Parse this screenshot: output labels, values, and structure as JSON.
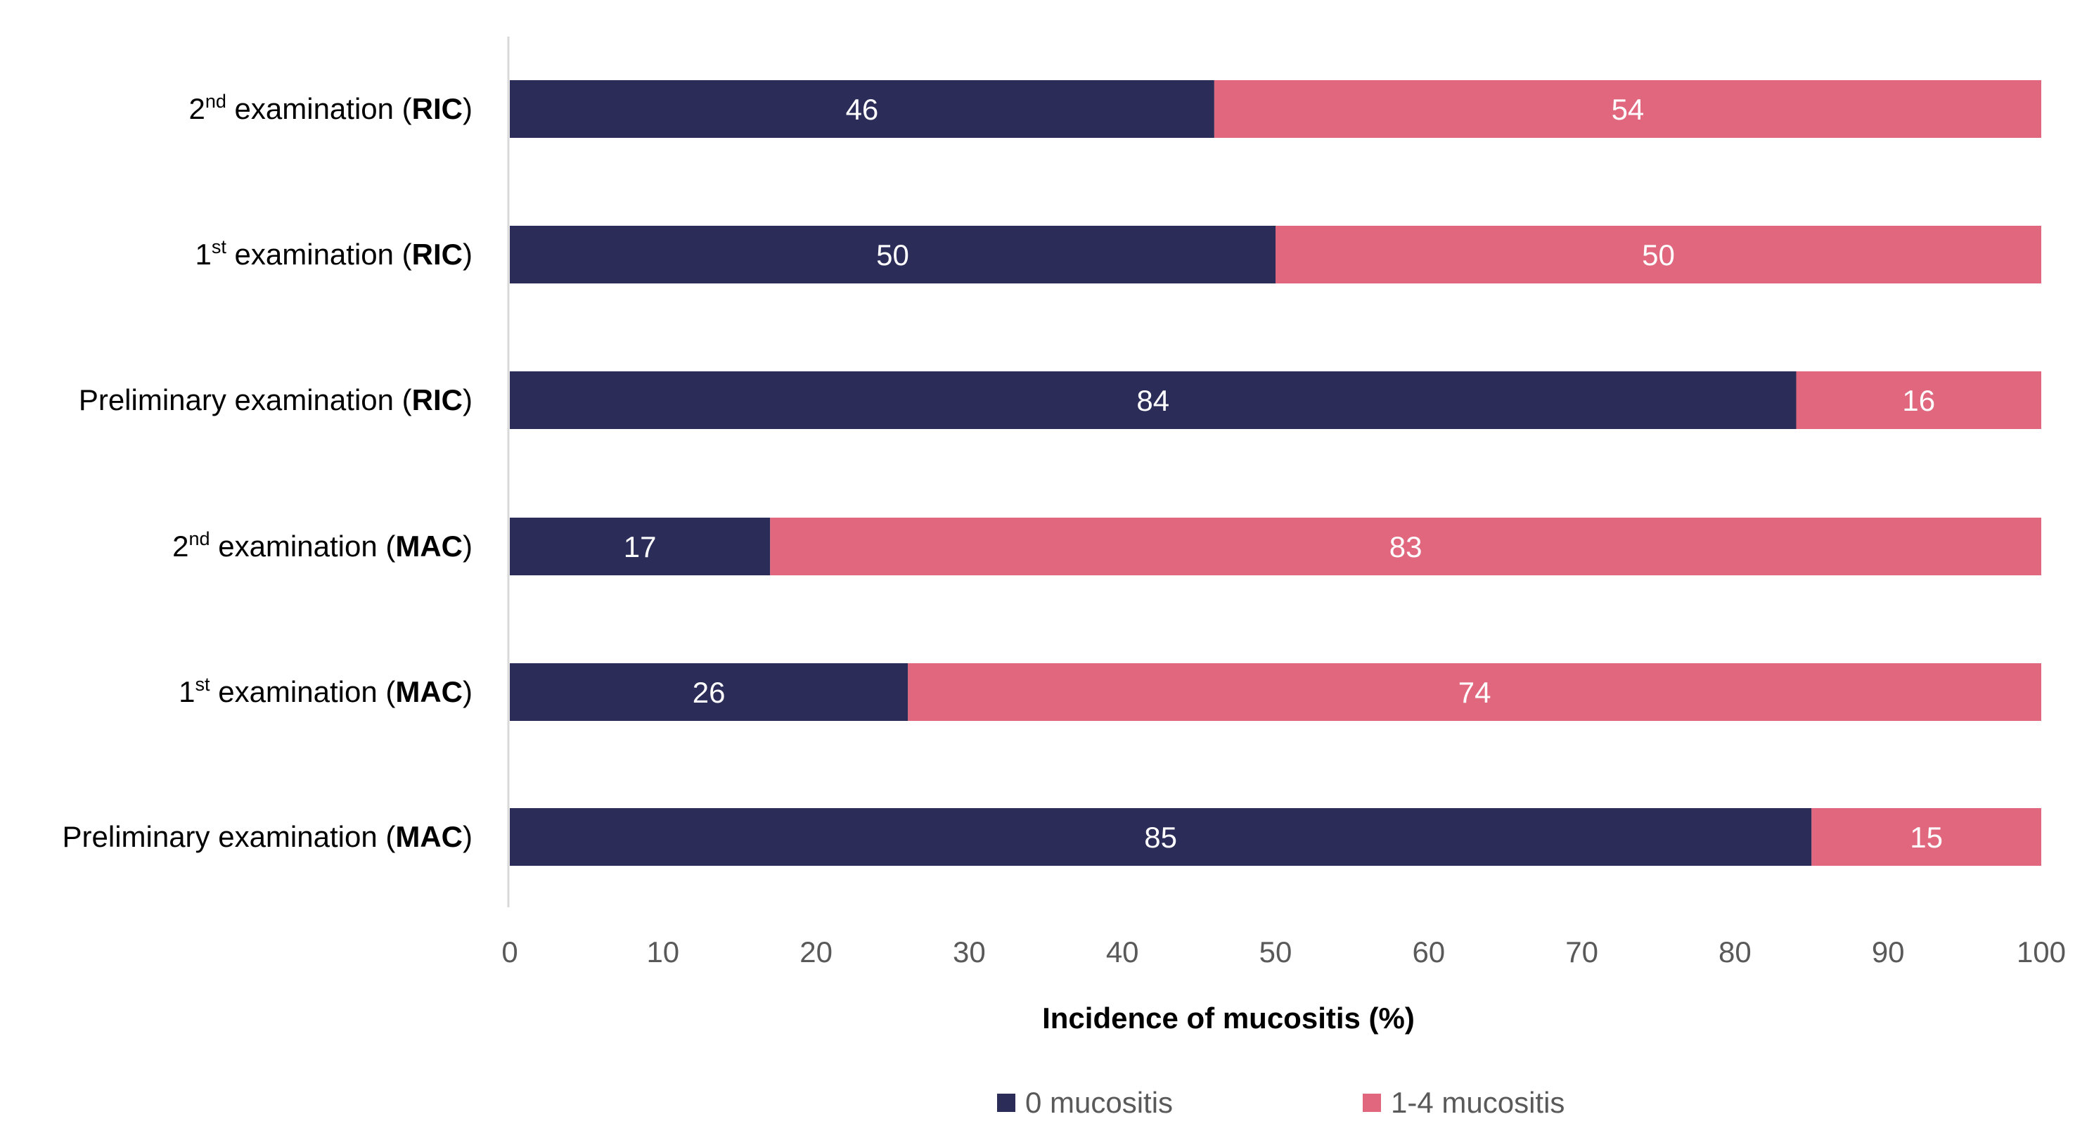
{
  "chart_data": {
    "type": "bar",
    "orientation": "horizontal",
    "stacked": true,
    "categories": [
      {
        "ordinal": "2",
        "sup": "nd",
        "text": " examination (",
        "group": "RIC",
        "close": ")"
      },
      {
        "ordinal": "1",
        "sup": "st",
        "text": " examination (",
        "group": "RIC",
        "close": ")"
      },
      {
        "ordinal": "",
        "sup": "",
        "text": "Preliminary examination (",
        "group": "RIC",
        "close": ")"
      },
      {
        "ordinal": "2",
        "sup": "nd",
        "text": " examination (",
        "group": "MAC",
        "close": ")"
      },
      {
        "ordinal": "1",
        "sup": "st",
        "text": " examination (",
        "group": "MAC",
        "close": ")"
      },
      {
        "ordinal": "",
        "sup": "",
        "text": "Preliminary examination (",
        "group": "MAC",
        "close": ")"
      }
    ],
    "series": [
      {
        "name": "0 mucositis",
        "color": "#2b2d58",
        "values": [
          46,
          50,
          84,
          17,
          26,
          85
        ]
      },
      {
        "name": "1-4 mucositis",
        "color": "#e0677d",
        "values": [
          54,
          50,
          16,
          83,
          74,
          15
        ]
      }
    ],
    "xlabel": "Incidence of mucositis (%)",
    "ylabel": "",
    "xlim": [
      0,
      100
    ],
    "xticks": [
      0,
      10,
      20,
      30,
      40,
      50,
      60,
      70,
      80,
      90,
      100
    ],
    "grid": false,
    "legend_position": "bottom"
  }
}
